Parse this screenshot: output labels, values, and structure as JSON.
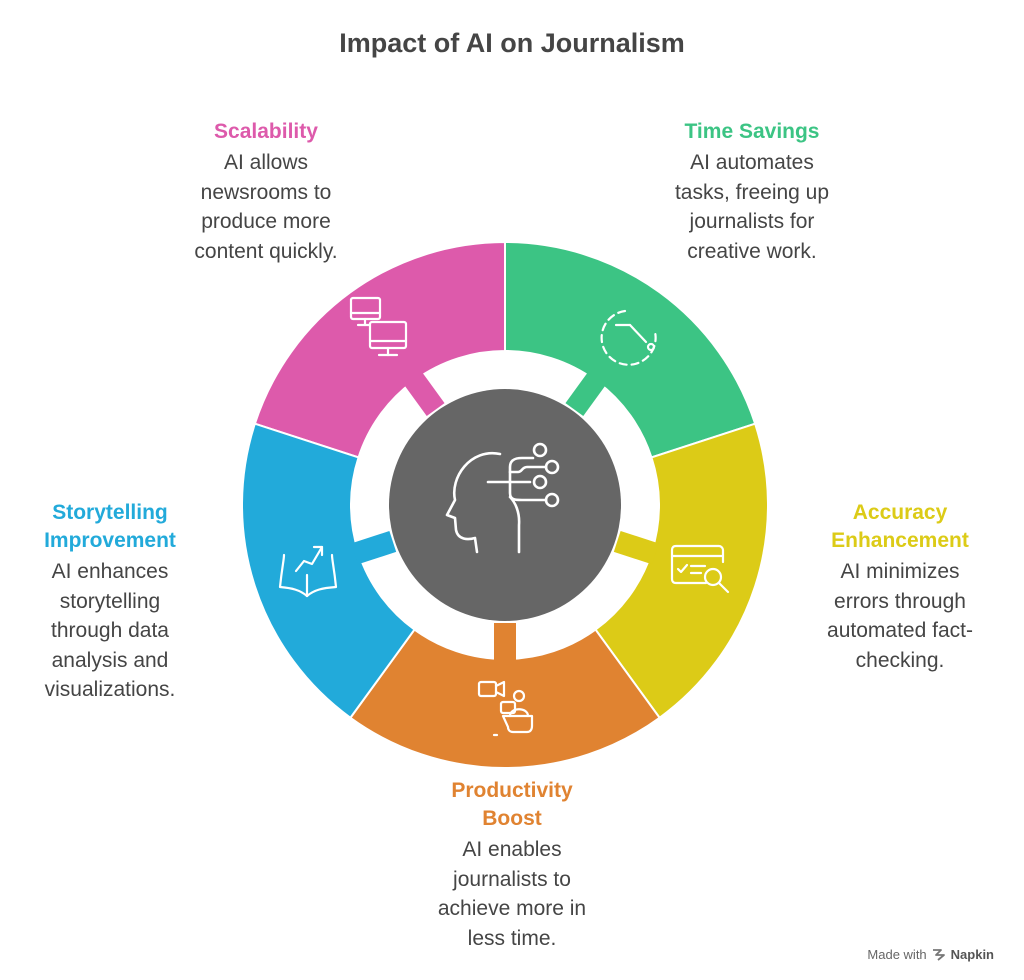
{
  "title": "Impact of AI on Journalism",
  "colors": {
    "scalability": "#DD5AAB",
    "time_savings": "#3CC484",
    "accuracy": "#DCCB17",
    "productivity": "#E08331",
    "storytelling": "#22AADA",
    "center": "#666666"
  },
  "center_icon": "ai-head-icon",
  "segments": [
    {
      "key": "scalability",
      "label": [
        "Scalability"
      ],
      "desc": [
        "AI allows",
        "newsrooms to",
        "produce more",
        "content quickly."
      ],
      "icon": "computers-icon"
    },
    {
      "key": "time_savings",
      "label": [
        "Time Savings"
      ],
      "desc": [
        "AI automates",
        "tasks, freeing up",
        "journalists for",
        "creative work."
      ],
      "icon": "stopwatch-icon"
    },
    {
      "key": "accuracy",
      "label": [
        "Accuracy",
        "Enhancement"
      ],
      "desc": [
        "AI minimizes",
        "errors through",
        "automated fact-",
        "checking."
      ],
      "icon": "inspect-window-icon"
    },
    {
      "key": "productivity",
      "label": [
        "Productivity",
        "Boost"
      ],
      "desc": [
        "AI enables",
        "journalists to",
        "achieve more in",
        "less time."
      ],
      "icon": "video-worker-icon"
    },
    {
      "key": "storytelling",
      "label": [
        "Storytelling",
        "Improvement"
      ],
      "desc": [
        "AI enhances",
        "storytelling",
        "through data",
        "analysis and",
        "visualizations."
      ],
      "icon": "book-chart-icon"
    }
  ],
  "footer": {
    "prefix": "Made with",
    "brand": "Napkin"
  }
}
